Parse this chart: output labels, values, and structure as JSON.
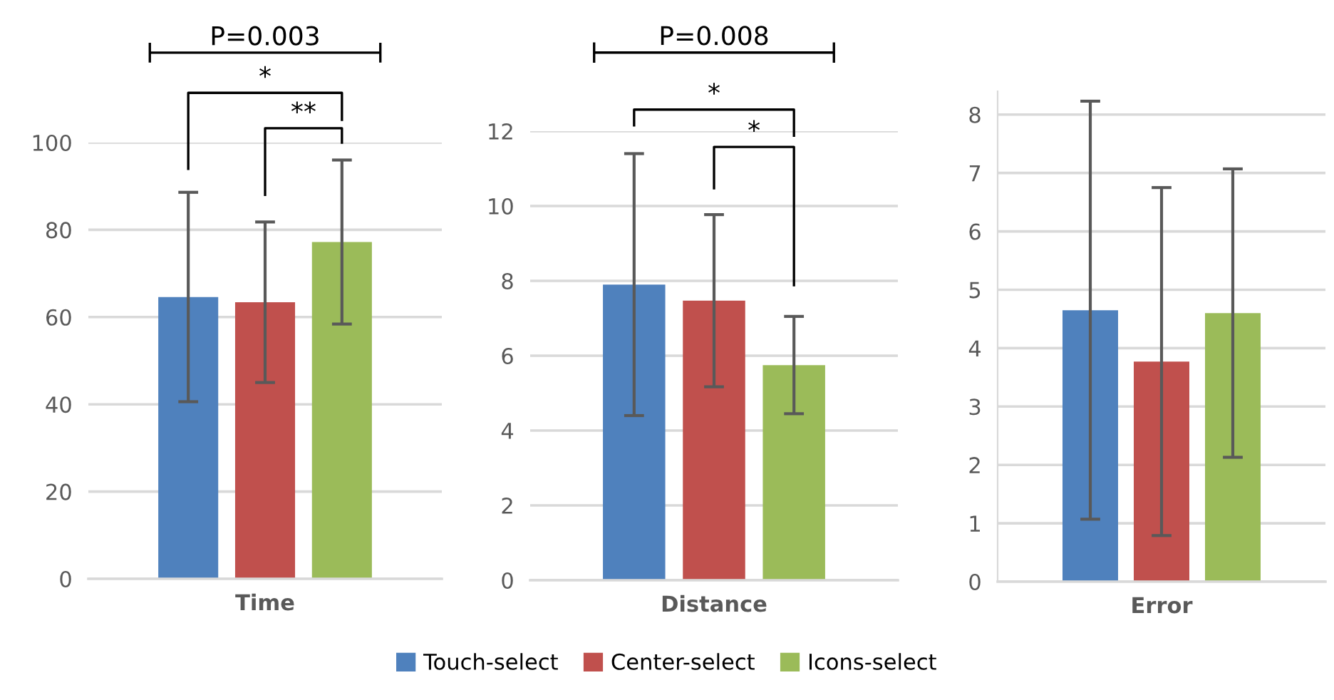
{
  "chart_data": [
    {
      "type": "bar",
      "stacked": true,
      "categories": [
        null,
        null,
        null
      ],
      "xlabel": "Time",
      "ylim": [
        0,
        100
      ],
      "yticks": [
        0,
        20,
        40,
        60,
        80,
        100
      ],
      "grid": "y",
      "legend": "bottom",
      "series": [
        {
          "name": "Touch-select",
          "color": "#4f81bd",
          "values": [
            64.6,
            null,
            null
          ],
          "errors": [
            24.0,
            null,
            null
          ]
        },
        {
          "name": "Center-select",
          "color": "#c0504d",
          "values": [
            null,
            63.4,
            null
          ],
          "errors": [
            null,
            18.4,
            null
          ]
        },
        {
          "name": "Icons-select",
          "color": "#9bbb59",
          "values": [
            null,
            null,
            77.2
          ],
          "errors": [
            null,
            null,
            18.8
          ]
        }
      ],
      "annotations": [
        "P=0.003",
        "*",
        "**"
      ]
    },
    {
      "type": "bar",
      "stacked": true,
      "categories": [
        null,
        null,
        null
      ],
      "xlabel": "Distance",
      "ylim": [
        0,
        12
      ],
      "yticks": [
        0,
        2,
        4,
        6,
        8,
        10,
        12
      ],
      "grid": "y",
      "legend": "bottom",
      "series": [
        {
          "name": "Touch-select",
          "color": "#4f81bd",
          "values": [
            7.9,
            null,
            null
          ],
          "errors": [
            3.5,
            null,
            null
          ]
        },
        {
          "name": "Center-select",
          "color": "#c0504d",
          "values": [
            null,
            7.47,
            null
          ],
          "errors": [
            null,
            2.3,
            null
          ]
        },
        {
          "name": "Icons-select",
          "color": "#9bbb59",
          "values": [
            null,
            null,
            5.75
          ],
          "errors": [
            null,
            null,
            1.3
          ]
        }
      ],
      "annotations": [
        "P=0.008",
        "*",
        "*"
      ]
    },
    {
      "type": "bar",
      "stacked": true,
      "categories": [
        null,
        null,
        null
      ],
      "xlabel": "Error",
      "ylim": [
        0,
        8.4
      ],
      "yticks": [
        0,
        1,
        2,
        3,
        4,
        5,
        6,
        7,
        8
      ],
      "grid": "y",
      "legend": "bottom",
      "series": [
        {
          "name": "Touch-select",
          "color": "#4f81bd",
          "values": [
            4.65,
            null,
            null
          ],
          "errors": [
            3.58,
            null,
            null
          ]
        },
        {
          "name": "Center-select",
          "color": "#c0504d",
          "values": [
            null,
            3.77,
            null
          ],
          "errors": [
            null,
            2.98,
            null
          ]
        },
        {
          "name": "Icons-select",
          "color": "#9bbb59",
          "values": [
            null,
            null,
            4.6
          ],
          "errors": [
            null,
            null,
            2.47
          ]
        }
      ]
    }
  ]
}
